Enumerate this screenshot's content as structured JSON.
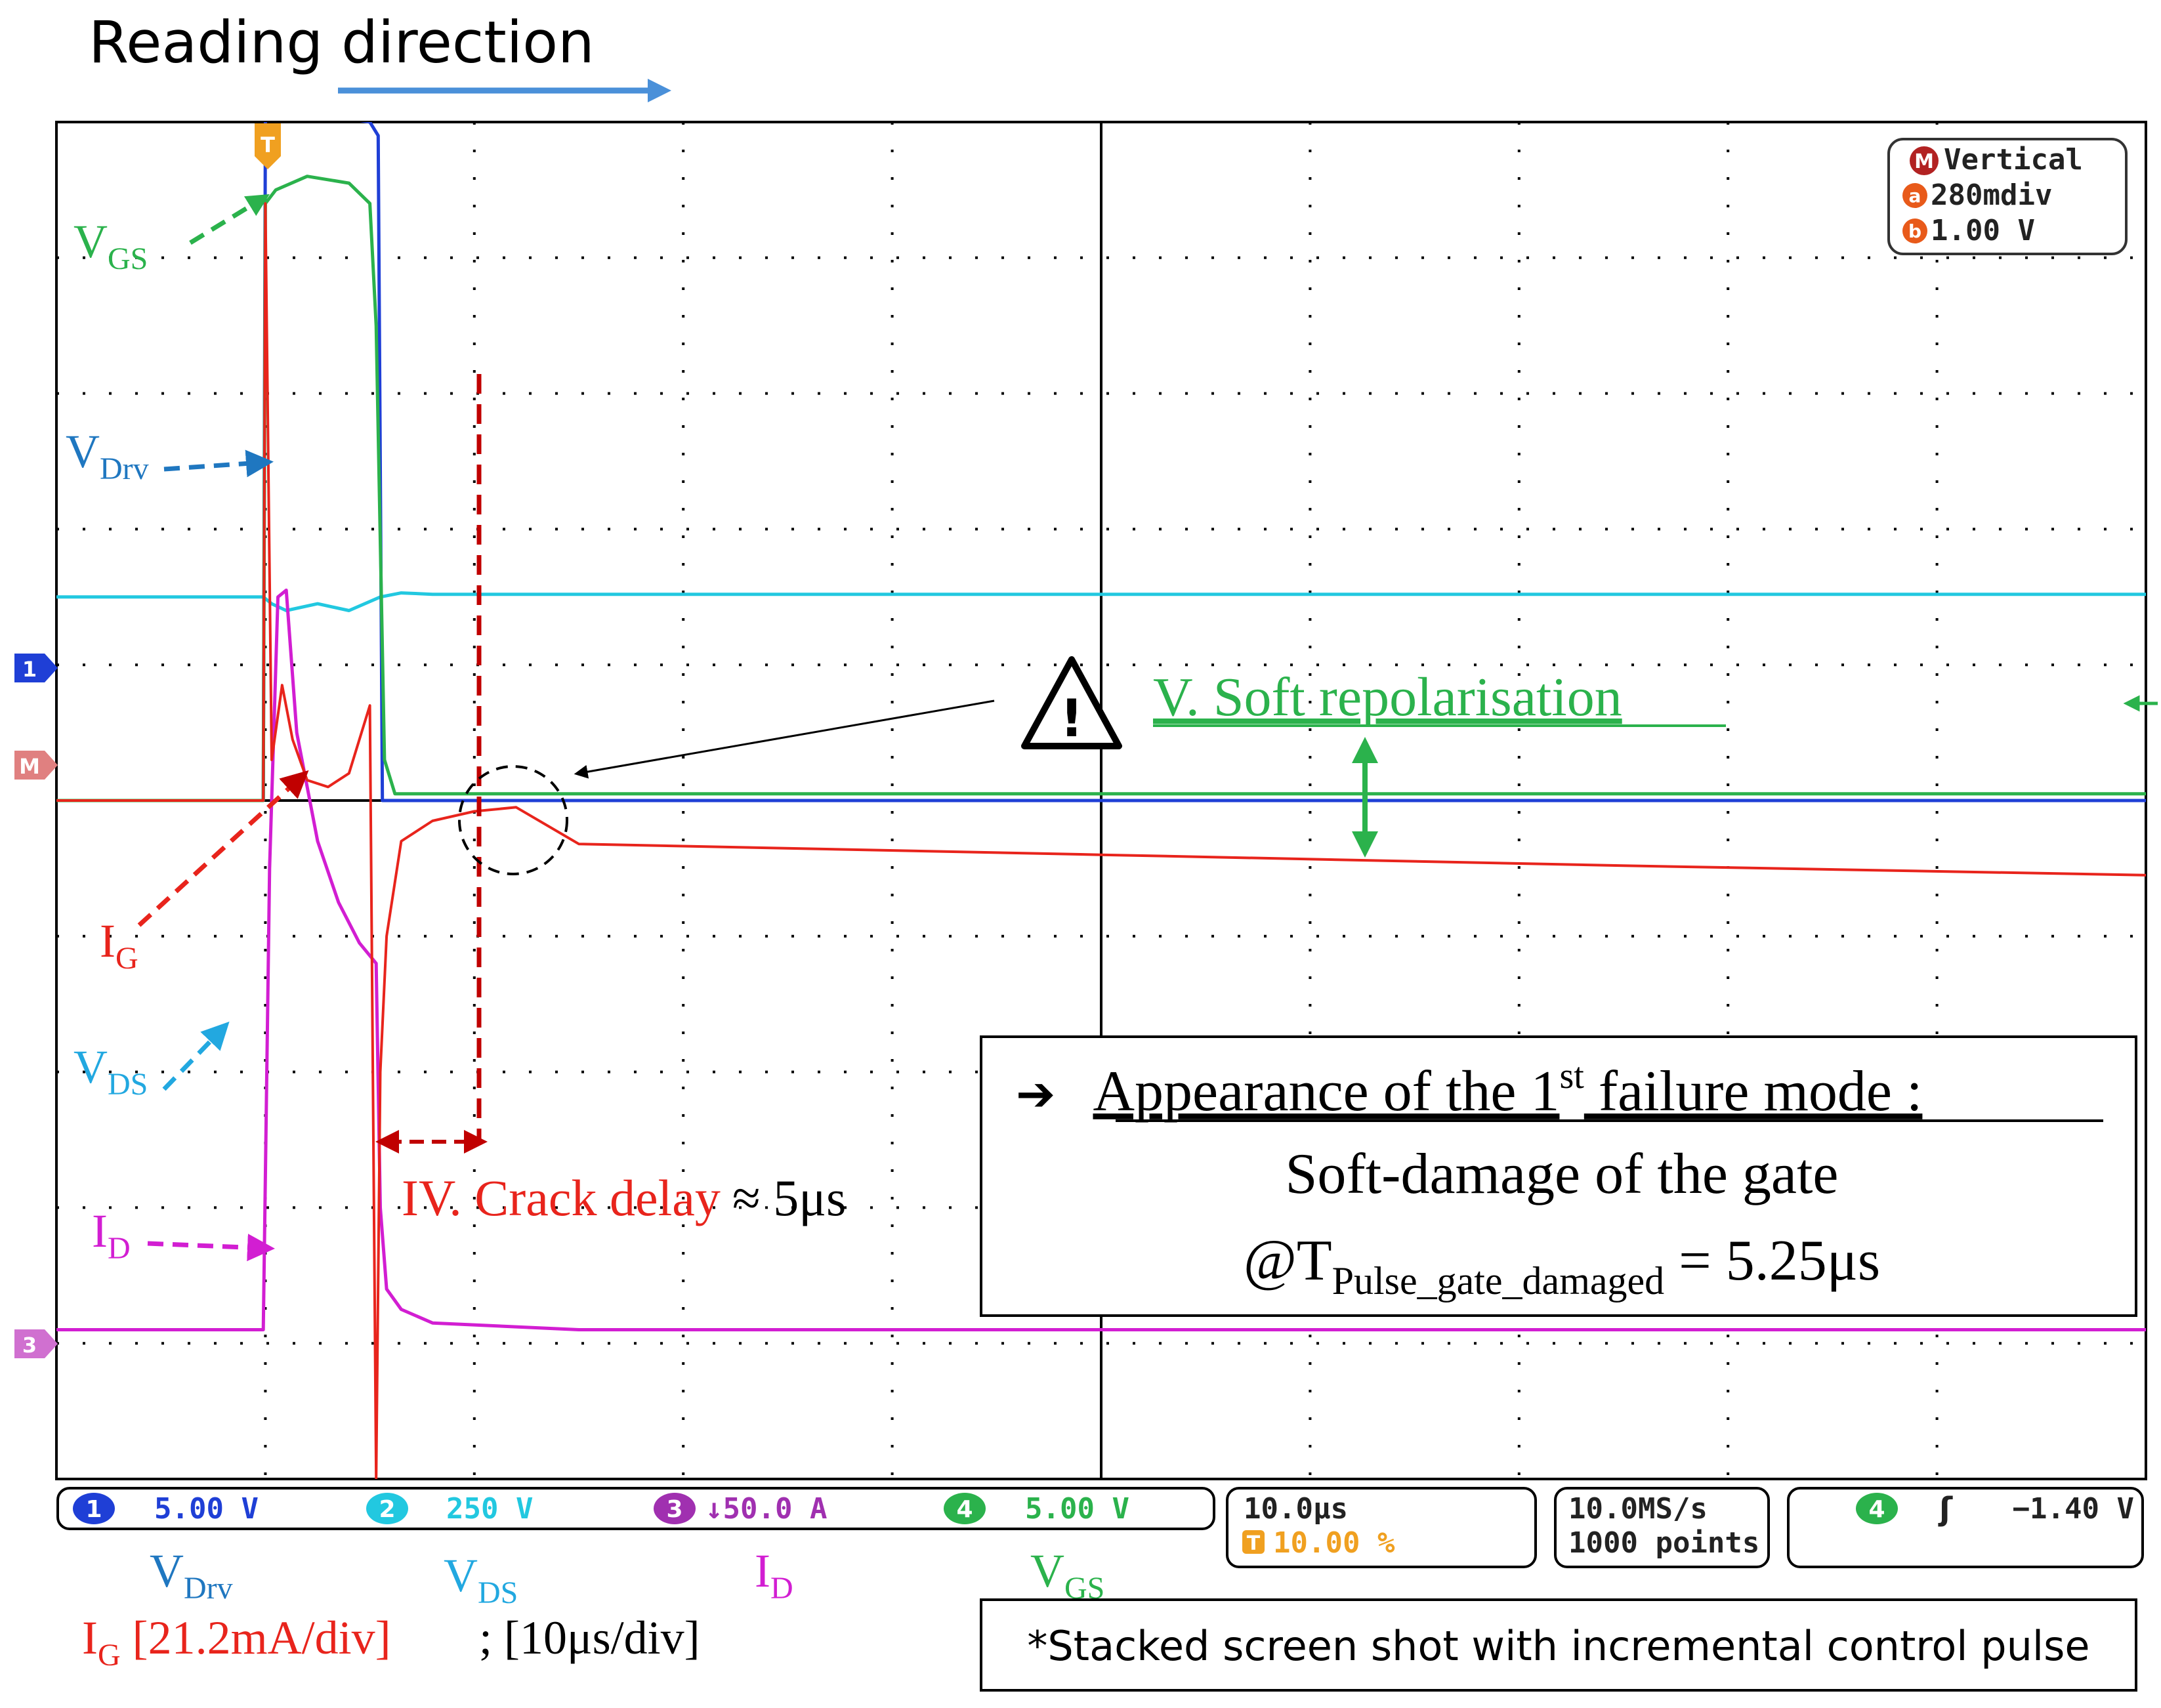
{
  "header": {
    "reading_direction": "Reading direction"
  },
  "vertical_box": {
    "title": "Vertical",
    "badge_m": "M",
    "badge_a": "a",
    "badge_b": "b",
    "row_a": "280mdiv",
    "row_b": "1.00 V"
  },
  "markers": {
    "trigger": "T",
    "ch1": "1",
    "math": "M",
    "ch3": "3"
  },
  "trace_labels": {
    "vgs_main": "V",
    "vgs_sub": "GS",
    "vdrv_main": "V",
    "vdrv_sub": "Drv",
    "ig_main": "I",
    "ig_sub": "G",
    "vds_main": "V",
    "vds_sub": "DS",
    "id_main": "I",
    "id_sub": "D"
  },
  "annotations": {
    "soft_repolarisation": "V. Soft repolarisation",
    "crack_delay": "IV. Crack delay",
    "crack_delay_value": "≈ 5μs",
    "warning_glyph": "!"
  },
  "failure_box": {
    "arrow": "➔",
    "line1_a": "Appearance of the 1",
    "line1_sup": "st",
    "line1_b": " failure mode :",
    "line2": "Soft-damage of the gate",
    "line3_a": "@T",
    "line3_sub": "Pulse_gate_damaged",
    "line3_b": " = 5.25μs"
  },
  "status_bar": {
    "ch1_num": "1",
    "ch1_scale": "5.00 V",
    "ch2_num": "2",
    "ch2_scale": "250 V",
    "ch3_num": "3",
    "ch3_scale": "↓50.0 A",
    "ch4_num": "4",
    "ch4_scale": "5.00 V",
    "timebase": "10.0μs",
    "trigger_pos_badge": "T",
    "trigger_pos": "10.00 %",
    "sample_rate": "10.0MS/s",
    "record_length": "1000 points",
    "trigger_ch": "4",
    "trigger_slope": "ʃ",
    "trigger_level": "−1.40 V"
  },
  "legend": {
    "vdrv_main": "V",
    "vdrv_sub": "Drv",
    "vds_main": "V",
    "vds_sub": "DS",
    "id_main": "I",
    "id_sub": "D",
    "vgs_main": "V",
    "vgs_sub": "GS",
    "ig_main": "I",
    "ig_sub": "G",
    "ig_scale": " [21.2mA/div]",
    "time_scale": "; [10μs/div]"
  },
  "note": "*Stacked screen shot with incremental control pulse",
  "colors": {
    "vdrv": "#1f3fd6",
    "vds": "#22c8e0",
    "id": "#d21ed2",
    "vgs": "#2bb24c",
    "ig": "#e8241c",
    "annotation_red": "#c00000",
    "annotation_blue": "#1f77c0",
    "grid": "#000000",
    "trigger": "#f0a020"
  },
  "chart_data": {
    "type": "line",
    "x_unit": "μs",
    "x_range": [
      0,
      100
    ],
    "series": [
      {
        "name": "VDrv",
        "x": [
          0,
          9.9,
          10,
          10.5,
          11,
          13,
          15,
          15.4,
          15.6,
          16,
          100
        ],
        "y": [
          0,
          0,
          5.0,
          5.15,
          5.1,
          5.05,
          5.0,
          4.9,
          0,
          0,
          0
        ]
      },
      {
        "name": "VDS",
        "x": [
          0,
          9.9,
          10.3,
          11,
          12.5,
          14,
          15.5,
          16.5,
          18,
          25,
          100
        ],
        "y": [
          1.5,
          1.5,
          1.45,
          1.4,
          1.45,
          1.4,
          1.5,
          1.53,
          1.52,
          1.52,
          1.52
        ]
      },
      {
        "name": "ID",
        "x": [
          0,
          9.9,
          10.2,
          10.6,
          11,
          11.5,
          12.5,
          13.5,
          14.5,
          15.3,
          15.5,
          15.8,
          16.5,
          18,
          25,
          40,
          100
        ],
        "y": [
          -3.9,
          -3.9,
          -0.5,
          1.5,
          1.55,
          0.5,
          -0.3,
          -0.75,
          -1.05,
          -1.2,
          -3.0,
          -3.6,
          -3.75,
          -3.85,
          -3.9,
          -3.9,
          -3.9
        ]
      },
      {
        "name": "VGS",
        "x": [
          0,
          9.9,
          10,
          10.5,
          12,
          14,
          15,
          15.3,
          15.7,
          16.2,
          20,
          23,
          100
        ],
        "y": [
          0,
          0,
          4.4,
          4.5,
          4.6,
          4.55,
          4.4,
          3.5,
          0.3,
          0.05,
          0.05,
          0.05,
          0.05
        ]
      },
      {
        "name": "IG",
        "x": [
          0,
          9.9,
          10,
          10.3,
          10.8,
          11.3,
          12,
          13,
          14,
          15,
          15.3,
          15.5,
          15.8,
          16.5,
          18,
          20,
          22,
          25,
          50,
          75,
          100
        ],
        "y": [
          0,
          0,
          4.4,
          0.3,
          0.85,
          0.45,
          0.15,
          0.1,
          0.2,
          0.7,
          -5.0,
          -2.0,
          -1.0,
          -0.3,
          -0.15,
          -0.08,
          -0.05,
          -0.32,
          -0.4,
          -0.48,
          -0.55
        ]
      }
    ],
    "ylim": [
      -5,
      5
    ],
    "grid": true
  }
}
